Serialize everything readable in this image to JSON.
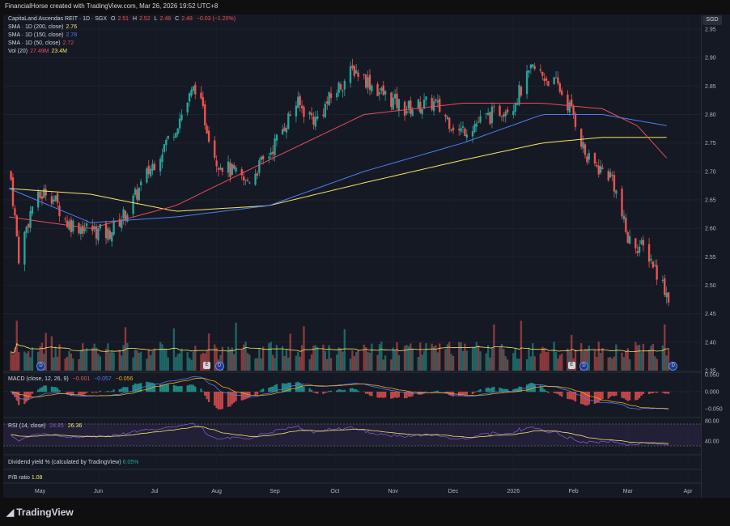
{
  "header": {
    "credit": "FinancialHorse created with TradingView.com, Mar 26, 2026 19:52 UTC+8"
  },
  "currency": "SGD",
  "legend": {
    "symbol": "CapitaLand Ascendas REIT · 1D · SGX",
    "ohlc": {
      "o_label": "O",
      "o": "2.51",
      "h_label": "H",
      "h": "2.52",
      "l_label": "L",
      "l": "2.48",
      "c_label": "C",
      "c": "2.48",
      "chg": "−0.03 (−1.20%)"
    },
    "sma200": {
      "label": "SMA · 1D (200, close)",
      "value": "2.76",
      "color": "#f5e663"
    },
    "sma150": {
      "label": "SMA · 1D (150, close)",
      "value": "2.78",
      "color": "#4c7ef3"
    },
    "sma50": {
      "label": "SMA · 1D (50, close)",
      "value": "2.72",
      "color": "#e84c5a"
    },
    "vol": {
      "label": "Vol (20)",
      "value1": "27.49M",
      "value2": "23.4M",
      "color1": "#e84c5a",
      "color2": "#f5e663"
    }
  },
  "macd_legend": {
    "label": "MACD (close, 12, 26, 9)",
    "v1": "−0.001",
    "v2": "−0.057",
    "v3": "−0.056"
  },
  "rsi_legend": {
    "label": "RSI (14, close)",
    "v1": "24.85",
    "v2": "26.36"
  },
  "dividend": {
    "label": "Dividend yield % (calculated by TradingView)",
    "value": "6.05%"
  },
  "pb": {
    "label": "P/B ratio",
    "value": "1.08"
  },
  "brand": "TradingView",
  "price_ticks": [
    "2.95",
    "2.90",
    "2.85",
    "2.80",
    "2.75",
    "2.70",
    "2.65",
    "2.60",
    "2.55",
    "2.50",
    "2.45",
    "2.40",
    "2.35"
  ],
  "macd_ticks": [
    "0.050",
    "0.000",
    "−0.050"
  ],
  "rsi_ticks": [
    "80.00",
    "40.00"
  ],
  "x_labels": [
    "May",
    "Jun",
    "Jul",
    "Aug",
    "Sep",
    "Oct",
    "Nov",
    "Dec",
    "2026",
    "Feb",
    "Mar",
    "Apr"
  ],
  "colors": {
    "up": "#26a69a",
    "down": "#ef5350",
    "sma200": "#f5e663",
    "sma150": "#4c7ef3",
    "sma50": "#e84c5a",
    "rsi": "#7e57c2",
    "signal": "#f5a623"
  },
  "chart_data": {
    "type": "candlestick",
    "ylim": [
      2.35,
      2.97
    ],
    "x_range_months": [
      "May 2025",
      "Apr 2026"
    ],
    "anchors": [
      [
        "2025-04-20",
        2.72
      ],
      [
        "2025-04-25",
        2.55
      ],
      [
        "2025-05-02",
        2.64
      ],
      [
        "2025-05-10",
        2.67
      ],
      [
        "2025-05-20",
        2.61
      ],
      [
        "2025-05-30",
        2.6
      ],
      [
        "2025-06-10",
        2.59
      ],
      [
        "2025-06-20",
        2.63
      ],
      [
        "2025-07-01",
        2.7
      ],
      [
        "2025-07-15",
        2.78
      ],
      [
        "2025-07-25",
        2.85
      ],
      [
        "2025-08-05",
        2.72
      ],
      [
        "2025-08-20",
        2.68
      ],
      [
        "2025-09-01",
        2.73
      ],
      [
        "2025-09-15",
        2.82
      ],
      [
        "2025-09-25",
        2.79
      ],
      [
        "2025-10-05",
        2.84
      ],
      [
        "2025-10-15",
        2.88
      ],
      [
        "2025-10-28",
        2.84
      ],
      [
        "2025-11-10",
        2.81
      ],
      [
        "2025-11-25",
        2.82
      ],
      [
        "2025-12-08",
        2.77
      ],
      [
        "2025-12-20",
        2.79
      ],
      [
        "2026-01-05",
        2.82
      ],
      [
        "2026-01-15",
        2.88
      ],
      [
        "2026-01-28",
        2.85
      ],
      [
        "2026-02-05",
        2.8
      ],
      [
        "2026-02-12",
        2.72
      ],
      [
        "2026-02-25",
        2.69
      ],
      [
        "2026-03-05",
        2.58
      ],
      [
        "2026-03-15",
        2.56
      ],
      [
        "2026-03-26",
        2.48
      ]
    ],
    "sma50": [
      [
        "2025-04-20",
        2.62
      ],
      [
        "2025-06-01",
        2.6
      ],
      [
        "2025-07-15",
        2.64
      ],
      [
        "2025-09-01",
        2.72
      ],
      [
        "2025-10-20",
        2.8
      ],
      [
        "2025-12-10",
        2.82
      ],
      [
        "2026-01-20",
        2.82
      ],
      [
        "2026-02-20",
        2.81
      ],
      [
        "2026-03-10",
        2.78
      ],
      [
        "2026-03-26",
        2.72
      ]
    ],
    "sma150": [
      [
        "2025-04-20",
        2.67
      ],
      [
        "2025-06-01",
        2.61
      ],
      [
        "2025-07-15",
        2.62
      ],
      [
        "2025-09-01",
        2.64
      ],
      [
        "2025-10-20",
        2.7
      ],
      [
        "2025-12-10",
        2.75
      ],
      [
        "2026-01-20",
        2.8
      ],
      [
        "2026-02-20",
        2.8
      ],
      [
        "2026-03-26",
        2.78
      ]
    ],
    "sma200": [
      [
        "2025-04-20",
        2.67
      ],
      [
        "2025-06-01",
        2.66
      ],
      [
        "2025-07-15",
        2.63
      ],
      [
        "2025-09-01",
        2.64
      ],
      [
        "2025-10-20",
        2.68
      ],
      [
        "2025-12-10",
        2.72
      ],
      [
        "2026-01-20",
        2.75
      ],
      [
        "2026-02-20",
        2.76
      ],
      [
        "2026-03-26",
        2.76
      ]
    ],
    "events": [
      {
        "type": "D",
        "date": "2025-05-06"
      },
      {
        "type": "E",
        "date": "2025-07-31"
      },
      {
        "type": "D",
        "date": "2025-08-06"
      },
      {
        "type": "E",
        "date": "2026-02-04"
      },
      {
        "type": "D",
        "date": "2026-02-10"
      },
      {
        "type": "D",
        "date": "2026-03-28"
      }
    ]
  }
}
